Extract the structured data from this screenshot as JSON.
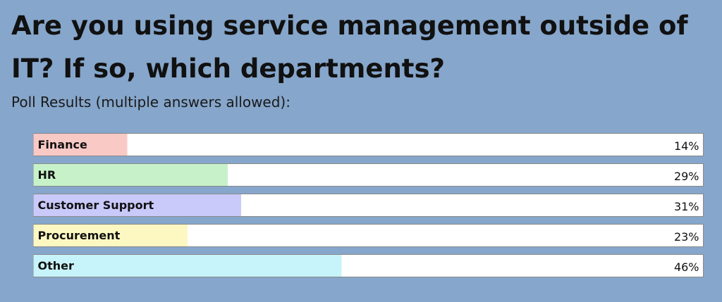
{
  "chart_data": {
    "type": "bar",
    "orientation": "horizontal",
    "title": "Are you using service management outside of IT? If so, which departments?",
    "subtitle": "Poll Results (multiple answers allowed):",
    "categories": [
      "Finance",
      "HR",
      "Customer Support",
      "Procurement",
      "Other"
    ],
    "values": [
      14,
      29,
      31,
      23,
      46
    ],
    "value_labels": [
      "14%",
      "29%",
      "31%",
      "23%",
      "46%"
    ],
    "colors": [
      "#f9c9c5",
      "#c7f2c9",
      "#c9c9fa",
      "#fdf8c2",
      "#c7f3fa"
    ],
    "xlim": [
      0,
      100
    ]
  }
}
